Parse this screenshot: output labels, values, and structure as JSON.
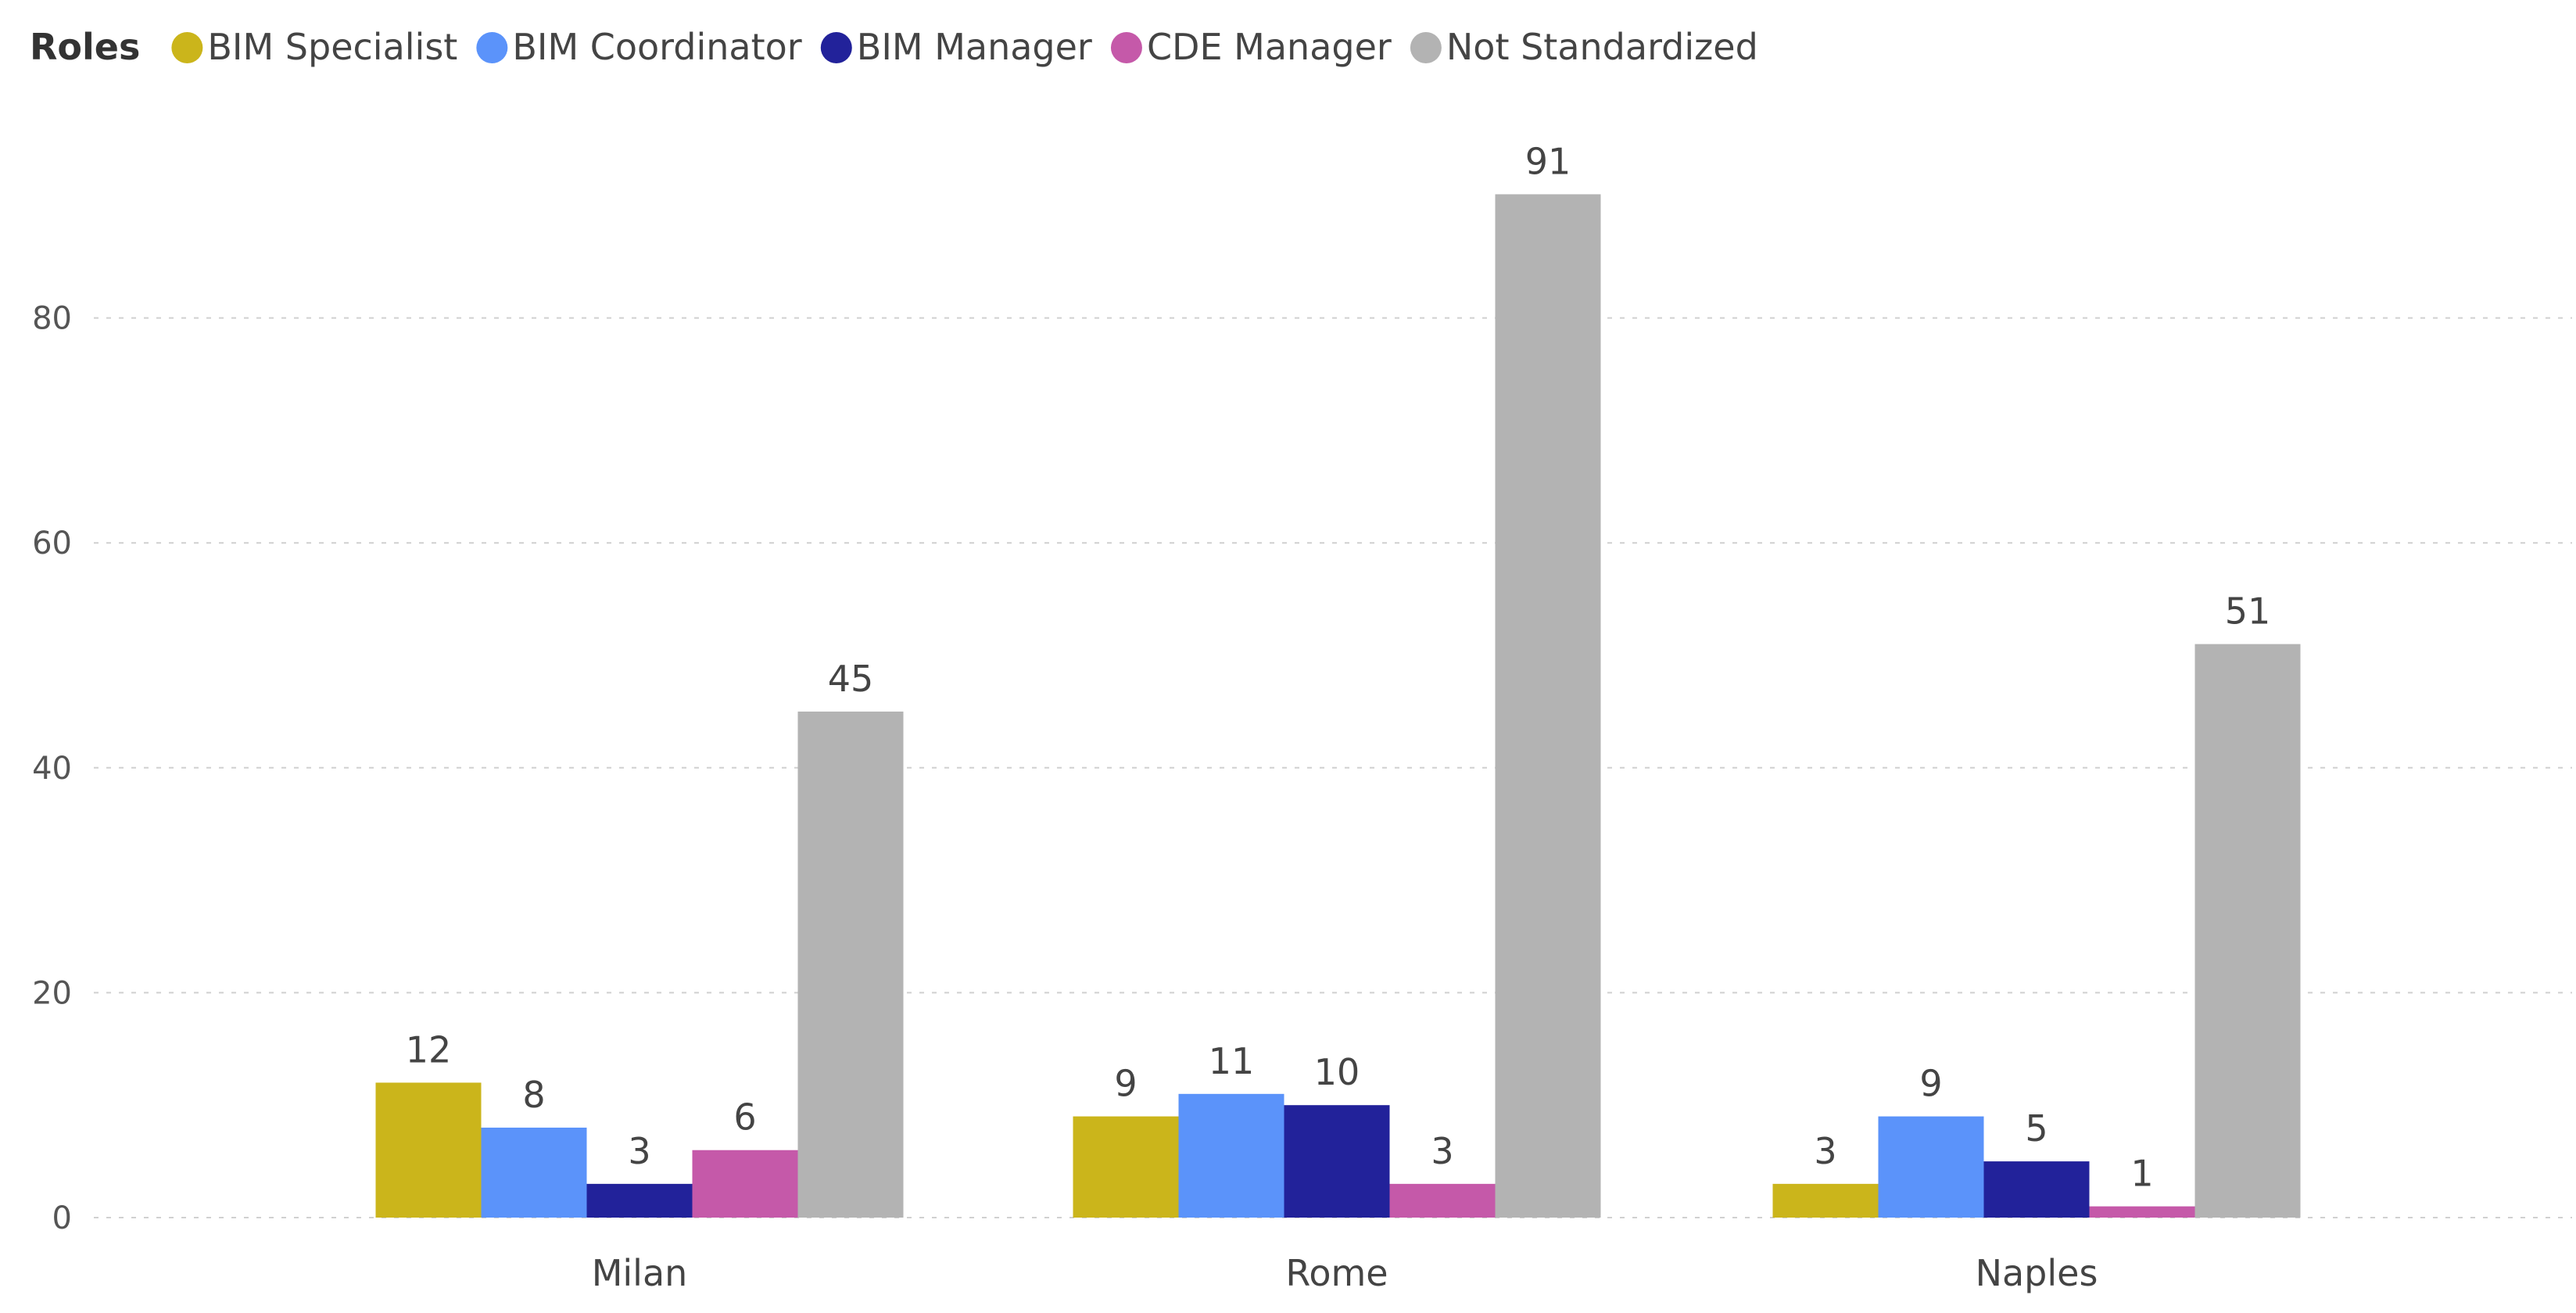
{
  "chart_data": {
    "type": "bar",
    "legend_title": "Roles",
    "legend_position": "top-left",
    "categories": [
      "Milan",
      "Rome",
      "Naples"
    ],
    "series": [
      {
        "name": "BIM Specialist",
        "color": "#CBB51B",
        "values": [
          12,
          9,
          3
        ]
      },
      {
        "name": "BIM Coordinator",
        "color": "#5B93FA",
        "values": [
          8,
          11,
          9
        ]
      },
      {
        "name": "BIM Manager",
        "color": "#22229A",
        "values": [
          3,
          10,
          5
        ]
      },
      {
        "name": "CDE Manager",
        "color": "#C559A9",
        "values": [
          6,
          3,
          1
        ]
      },
      {
        "name": "Not Standardized",
        "color": "#B3B3B3",
        "values": [
          45,
          91,
          51
        ]
      }
    ],
    "y_ticks": [
      0,
      20,
      40,
      60,
      80
    ],
    "ylim": [
      0,
      94
    ],
    "grid": true,
    "xlabel": "",
    "ylabel": "",
    "title": ""
  }
}
